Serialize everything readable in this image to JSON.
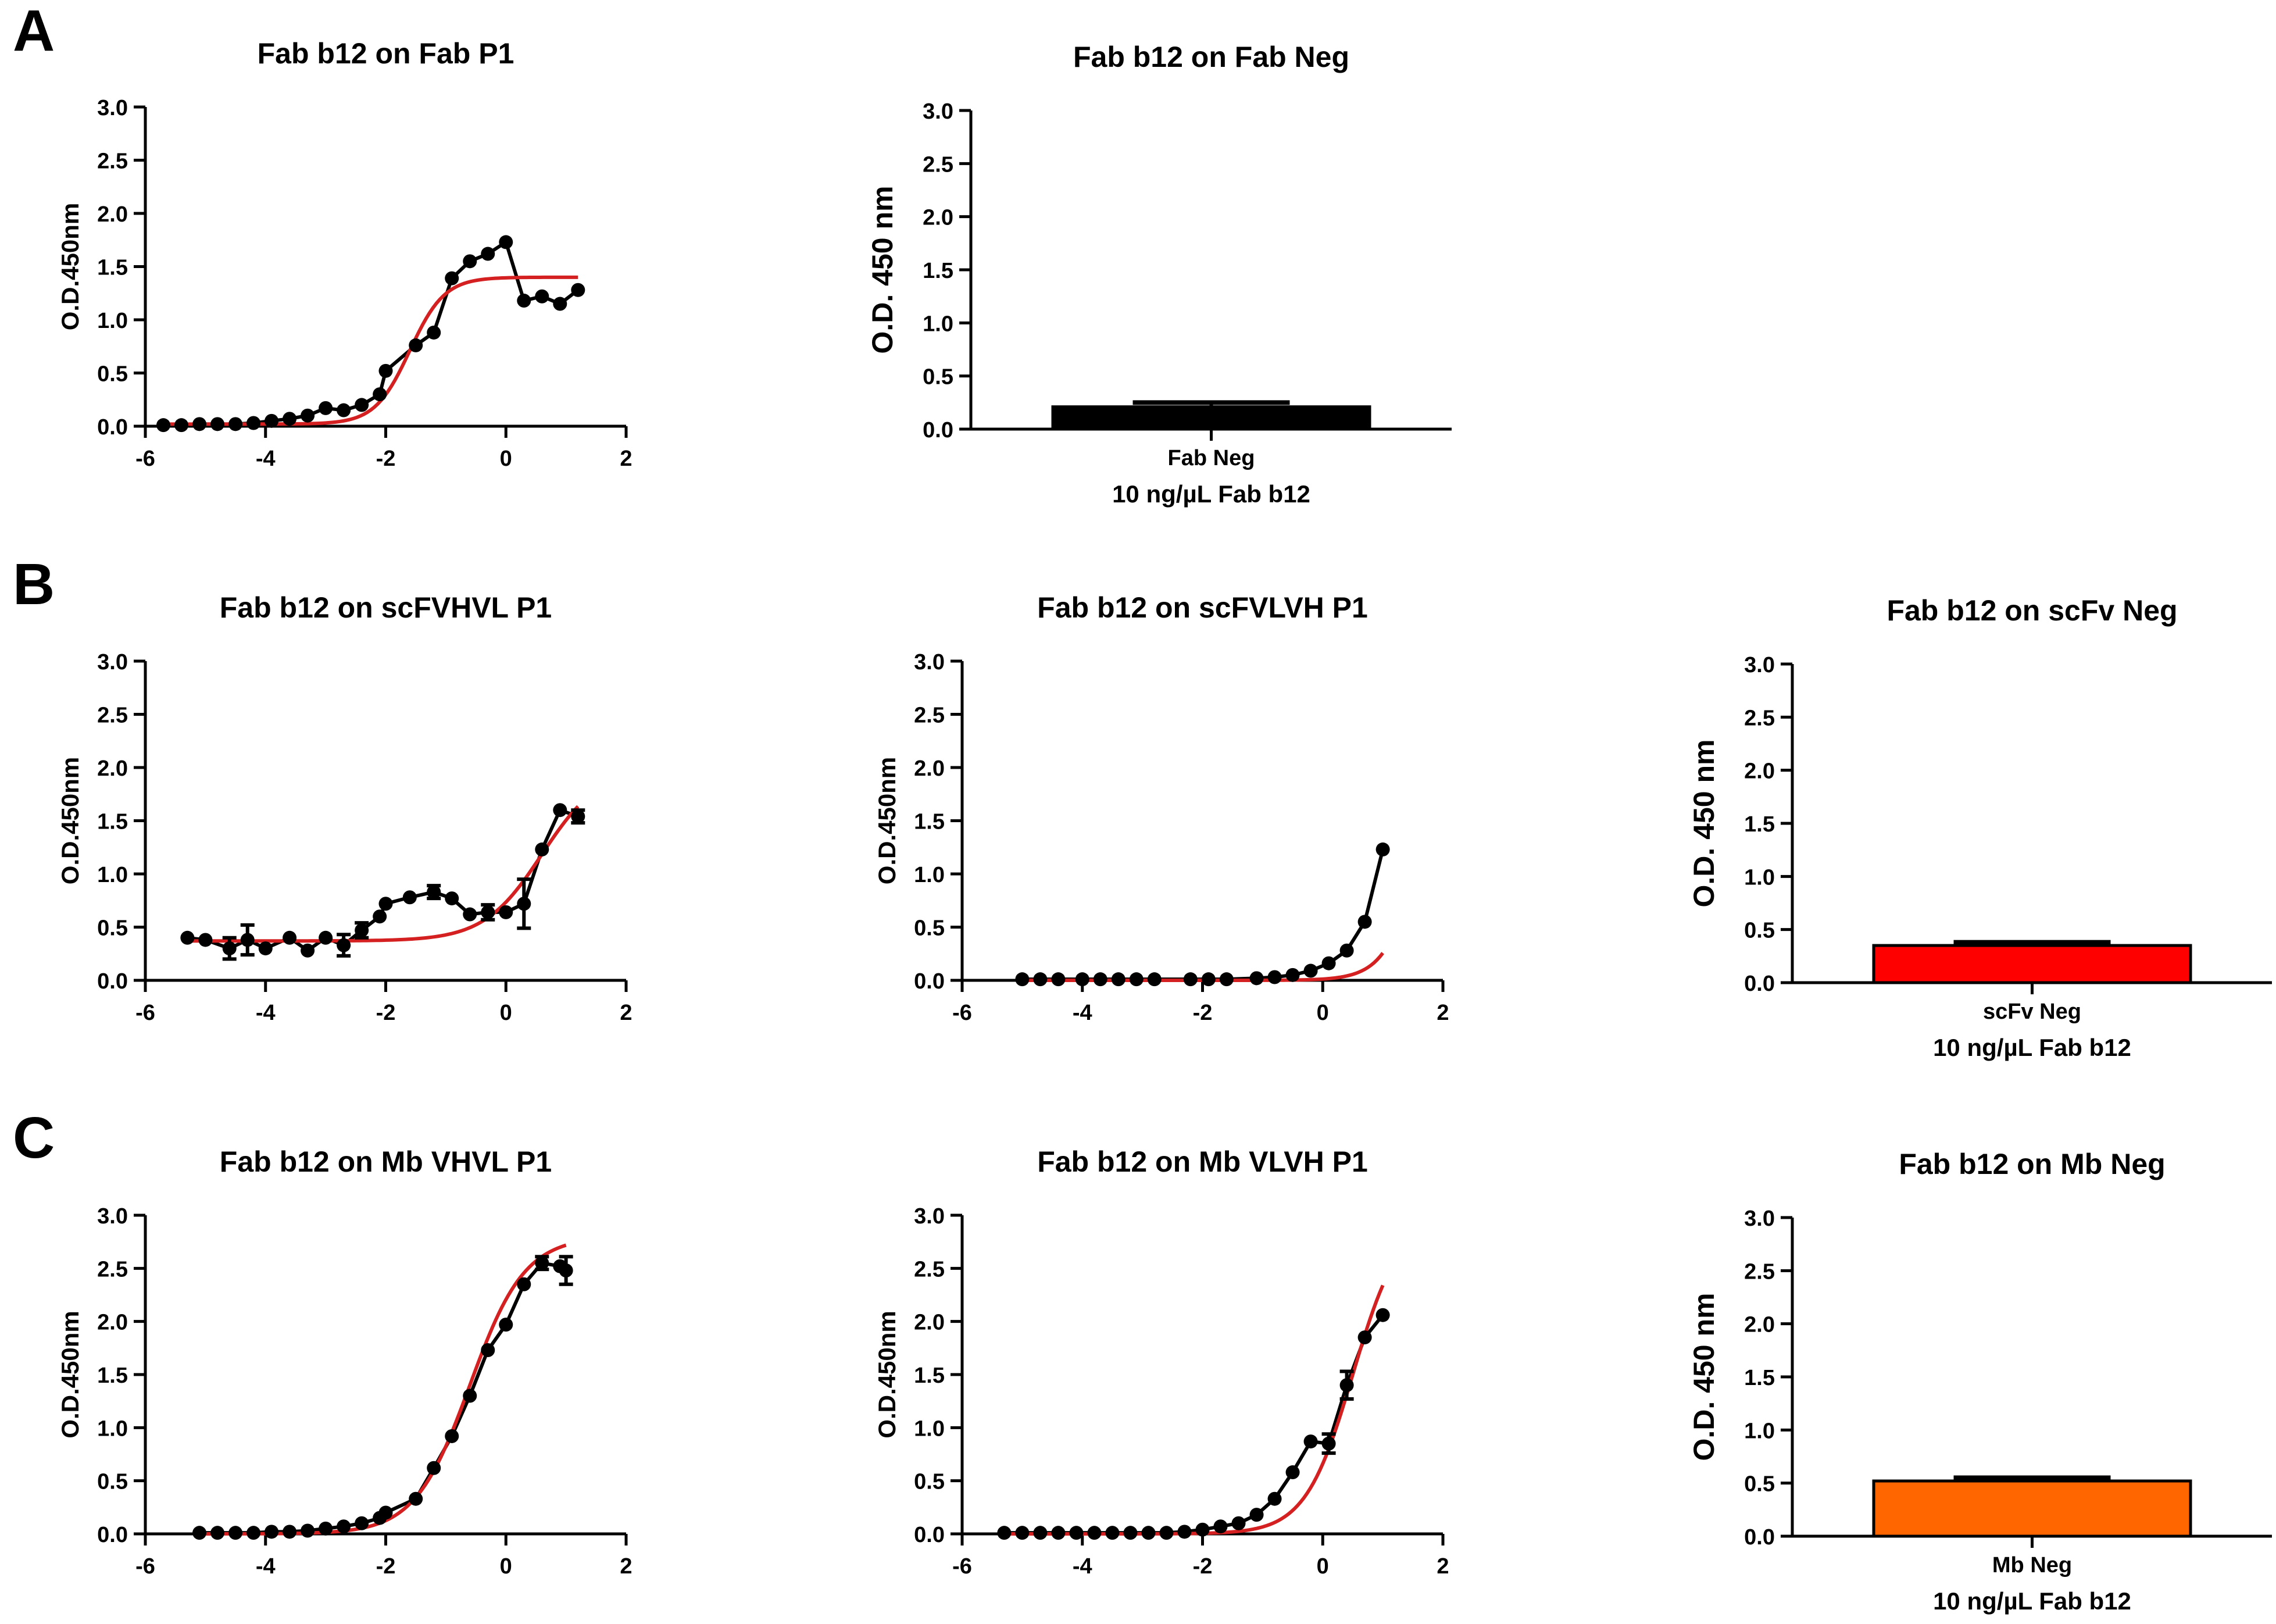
{
  "panels": {
    "A": "A",
    "B": "B",
    "C": "C"
  },
  "colors": {
    "axis": "#000000",
    "data": "#000000",
    "fit": "#d42020",
    "bar_black": "#000000",
    "bar_red": "#ff0000",
    "bar_orange": "#ff6600"
  },
  "chart_data": [
    {
      "id": "a1",
      "type": "line",
      "title": "Fab b12 on Fab P1",
      "ylabel": "O.D.450nm",
      "xlabel": "",
      "xlim": [
        -6,
        2
      ],
      "ylim": [
        0,
        3
      ],
      "xticks": [
        "-6",
        "-4",
        "-2",
        "0",
        "2"
      ],
      "yticks": [
        "0.0",
        "0.5",
        "1.0",
        "1.5",
        "2.0",
        "2.5",
        "3.0"
      ],
      "series": [
        {
          "name": "data",
          "x": [
            -5.7,
            -5.4,
            -5.1,
            -4.8,
            -4.5,
            -4.2,
            -3.9,
            -3.6,
            -3.3,
            -3.0,
            -2.7,
            -2.4,
            -2.1,
            -2.0,
            -1.5,
            -1.2,
            -0.9,
            -0.6,
            -0.3,
            0.0,
            0.3,
            0.6,
            0.9,
            1.2
          ],
          "y": [
            0.01,
            0.01,
            0.02,
            0.02,
            0.02,
            0.03,
            0.05,
            0.07,
            0.1,
            0.17,
            0.15,
            0.2,
            0.3,
            0.52,
            0.76,
            0.88,
            1.39,
            1.55,
            1.62,
            1.73,
            1.18,
            1.22,
            1.15,
            1.28
          ],
          "err": []
        },
        {
          "name": "fit",
          "bottom": 0.02,
          "top": 1.4,
          "logec50": -1.6,
          "hill": 1.5,
          "xmin": -5.7,
          "xmax": 1.2
        }
      ]
    },
    {
      "id": "a2",
      "type": "bar",
      "title": "Fab b12 on Fab Neg",
      "ylabel": "O.D. 450 nm",
      "xlabel": "10 ng/µL Fab b12",
      "ylim": [
        0,
        3
      ],
      "yticks": [
        "0.0",
        "0.5",
        "1.0",
        "1.5",
        "2.0",
        "2.5",
        "3.0"
      ],
      "categories": [
        "Fab Neg"
      ],
      "values": [
        0.21
      ],
      "err": [
        0.04
      ],
      "bar_color": "#000000"
    },
    {
      "id": "b1",
      "type": "line",
      "title": "Fab b12 on scFVHVL P1",
      "ylabel": "O.D.450nm",
      "xlabel": "",
      "xlim": [
        -6,
        2
      ],
      "ylim": [
        0,
        3
      ],
      "xticks": [
        "-6",
        "-4",
        "-2",
        "0",
        "2"
      ],
      "yticks": [
        "0.0",
        "0.5",
        "1.0",
        "1.5",
        "2.0",
        "2.5",
        "3.0"
      ],
      "series": [
        {
          "name": "data",
          "x": [
            -5.3,
            -5.0,
            -4.6,
            -4.3,
            -4.0,
            -3.6,
            -3.3,
            -3.0,
            -2.7,
            -2.4,
            -2.1,
            -2.0,
            -1.6,
            -1.2,
            -0.9,
            -0.6,
            -0.3,
            0.0,
            0.3,
            0.6,
            0.9,
            1.2
          ],
          "y": [
            0.4,
            0.38,
            0.3,
            0.38,
            0.3,
            0.4,
            0.28,
            0.4,
            0.33,
            0.47,
            0.6,
            0.72,
            0.78,
            0.83,
            0.77,
            0.62,
            0.64,
            0.64,
            0.72,
            1.23,
            1.6,
            1.54
          ],
          "err": [
            0,
            0,
            0.1,
            0.14,
            0,
            0,
            0,
            0,
            0.1,
            0.07,
            0,
            0,
            0,
            0.06,
            0,
            0,
            0.07,
            0,
            0.23,
            0,
            0,
            0.06
          ]
        },
        {
          "name": "fit",
          "bottom": 0.37,
          "top": 2.0,
          "logec50": 0.6,
          "hill": 0.9,
          "xmin": -5.3,
          "xmax": 1.2
        }
      ]
    },
    {
      "id": "b2",
      "type": "line",
      "title": "Fab b12 on scFVLVH P1",
      "ylabel": "O.D.450nm",
      "xlabel": "",
      "xlim": [
        -6,
        2
      ],
      "ylim": [
        0,
        3
      ],
      "xticks": [
        "-6",
        "-4",
        "-2",
        "0",
        "2"
      ],
      "yticks": [
        "0.0",
        "0.5",
        "1.0",
        "1.5",
        "2.0",
        "2.5",
        "3.0"
      ],
      "series": [
        {
          "name": "data",
          "x": [
            -5.0,
            -4.7,
            -4.4,
            -4.0,
            -3.7,
            -3.4,
            -3.1,
            -2.8,
            -2.2,
            -1.9,
            -1.6,
            -1.1,
            -0.8,
            -0.5,
            -0.2,
            0.1,
            0.4,
            0.7,
            1.0
          ],
          "y": [
            0.01,
            0.01,
            0.01,
            0.01,
            0.01,
            0.01,
            0.01,
            0.01,
            0.01,
            0.01,
            0.01,
            0.02,
            0.03,
            0.05,
            0.09,
            0.16,
            0.28,
            0.55,
            1.23
          ],
          "err": []
        },
        {
          "name": "fit",
          "bottom": 0.0,
          "top": 6.0,
          "logec50": 2.0,
          "hill": 1.35,
          "xmin": -5.0,
          "xmax": 1.0
        }
      ]
    },
    {
      "id": "b3",
      "type": "bar",
      "title": "Fab b12 on scFv Neg",
      "ylabel": "O.D. 450 nm",
      "xlabel": "10 ng/µL Fab b12",
      "ylim": [
        0,
        3
      ],
      "yticks": [
        "0.0",
        "0.5",
        "1.0",
        "1.5",
        "2.0",
        "2.5",
        "3.0"
      ],
      "categories": [
        "scFv Neg"
      ],
      "values": [
        0.35
      ],
      "err": [
        0.03
      ],
      "bar_color": "#ff0000"
    },
    {
      "id": "c1",
      "type": "line",
      "title": "Fab b12 on Mb VHVL P1",
      "ylabel": "O.D.450nm",
      "xlabel": "",
      "xlim": [
        -6,
        2
      ],
      "ylim": [
        0,
        3
      ],
      "xticks": [
        "-6",
        "-4",
        "-2",
        "0",
        "2"
      ],
      "yticks": [
        "0.0",
        "0.5",
        "1.0",
        "1.5",
        "2.0",
        "2.5",
        "3.0"
      ],
      "series": [
        {
          "name": "data",
          "x": [
            -5.1,
            -4.8,
            -4.5,
            -4.2,
            -3.9,
            -3.6,
            -3.3,
            -3.0,
            -2.7,
            -2.4,
            -2.1,
            -2.0,
            -1.5,
            -1.2,
            -0.9,
            -0.6,
            -0.3,
            0.0,
            0.3,
            0.6,
            0.9,
            1.0
          ],
          "y": [
            0.01,
            0.01,
            0.01,
            0.01,
            0.02,
            0.02,
            0.03,
            0.05,
            0.07,
            0.1,
            0.15,
            0.2,
            0.33,
            0.62,
            0.92,
            1.3,
            1.73,
            1.97,
            2.35,
            2.55,
            2.52,
            2.48
          ],
          "err": [
            0,
            0,
            0,
            0,
            0,
            0,
            0,
            0,
            0,
            0,
            0,
            0,
            0,
            0,
            0,
            0,
            0,
            0,
            0,
            0.06,
            0,
            0.13
          ]
        },
        {
          "name": "fit",
          "bottom": 0.0,
          "top": 2.8,
          "logec50": -0.6,
          "hill": 0.95,
          "xmin": -5.1,
          "xmax": 1.0
        }
      ]
    },
    {
      "id": "c2",
      "type": "line",
      "title": "Fab b12 on Mb VLVH P1",
      "ylabel": "O.D.450nm",
      "xlabel": "",
      "xlim": [
        -6,
        2
      ],
      "ylim": [
        0,
        3
      ],
      "xticks": [
        "-6",
        "-4",
        "-2",
        "0",
        "2"
      ],
      "yticks": [
        "0.0",
        "0.5",
        "1.0",
        "1.5",
        "2.0",
        "2.5",
        "3.0"
      ],
      "series": [
        {
          "name": "data",
          "x": [
            -5.3,
            -5.0,
            -4.7,
            -4.4,
            -4.1,
            -3.8,
            -3.5,
            -3.2,
            -2.9,
            -2.6,
            -2.3,
            -2.0,
            -1.7,
            -1.4,
            -1.1,
            -0.8,
            -0.5,
            -0.2,
            0.1,
            0.4,
            0.7,
            1.0
          ],
          "y": [
            0.01,
            0.01,
            0.01,
            0.01,
            0.01,
            0.01,
            0.01,
            0.01,
            0.01,
            0.01,
            0.02,
            0.04,
            0.07,
            0.1,
            0.18,
            0.33,
            0.58,
            0.87,
            0.85,
            1.4,
            1.85,
            2.06
          ],
          "err": [
            0,
            0,
            0,
            0,
            0,
            0,
            0,
            0,
            0,
            0,
            0,
            0,
            0,
            0,
            0,
            0,
            0,
            0,
            0.09,
            0.13,
            0,
            0
          ]
        },
        {
          "name": "fit",
          "bottom": 0.0,
          "top": 3.0,
          "logec50": 0.5,
          "hill": 1.1,
          "xmin": -5.3,
          "xmax": 1.0
        }
      ]
    },
    {
      "id": "c3",
      "type": "bar",
      "title": "Fab b12 on Mb Neg",
      "ylabel": "O.D. 450 nm",
      "xlabel": "10 ng/µL Fab b12",
      "ylim": [
        0,
        3
      ],
      "yticks": [
        "0.0",
        "0.5",
        "1.0",
        "1.5",
        "2.0",
        "2.5",
        "3.0"
      ],
      "categories": [
        "Mb Neg"
      ],
      "values": [
        0.52
      ],
      "err": [
        0.03
      ],
      "bar_color": "#ff6600"
    }
  ]
}
